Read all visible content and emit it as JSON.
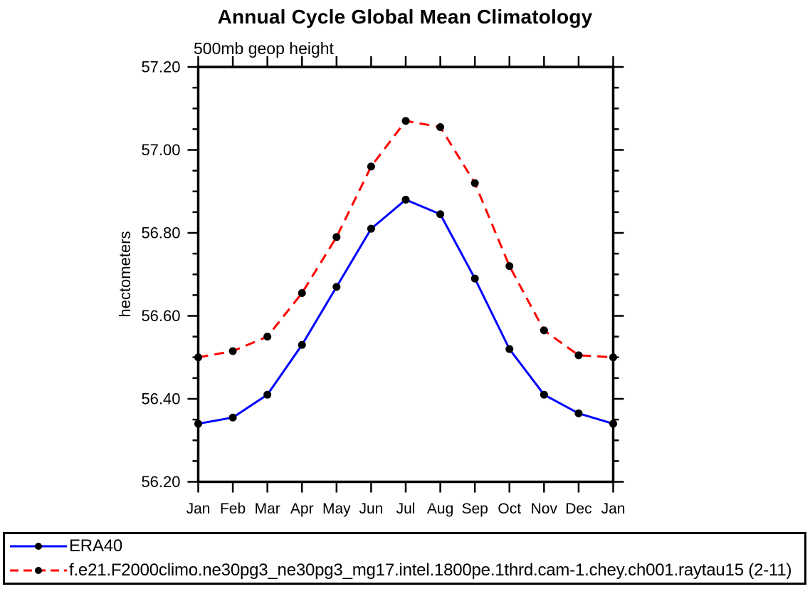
{
  "chart_data": {
    "type": "line",
    "title": "Annual Cycle Global Mean Climatology",
    "subtitle": "500mb geop height",
    "ylabel": "hectometers",
    "xlabel": "",
    "categories": [
      "Jan",
      "Feb",
      "Mar",
      "Apr",
      "May",
      "Jun",
      "Jul",
      "Aug",
      "Sep",
      "Oct",
      "Nov",
      "Dec",
      "Jan"
    ],
    "ylim": [
      56.2,
      57.2
    ],
    "y_major_ticks": [
      56.2,
      56.4,
      56.6,
      56.8,
      57.0,
      57.2
    ],
    "y_tick_labels": [
      "56.20",
      "56.40",
      "56.60",
      "56.80",
      "57.00",
      "57.20"
    ],
    "y_minor_step": 0.05,
    "grid": false,
    "legend_position": "bottom",
    "axis_color": "#000000",
    "marker_shape": "filled-circle",
    "series": [
      {
        "name": "ERA40",
        "color": "#0000ff",
        "style": "solid",
        "marker_color": "#000000",
        "values": [
          56.34,
          56.355,
          56.41,
          56.53,
          56.67,
          56.81,
          56.88,
          56.845,
          56.69,
          56.52,
          56.41,
          56.365,
          56.34
        ]
      },
      {
        "name": "f.e21.F2000climo.ne30pg3_ne30pg3_mg17.intel.1800pe.1thrd.cam-1.chey.ch001.raytau15 (2-11)",
        "color": "#ff0000",
        "style": "dashed",
        "marker_color": "#000000",
        "values": [
          56.5,
          56.515,
          56.55,
          56.655,
          56.79,
          56.96,
          57.07,
          57.055,
          56.92,
          56.72,
          56.565,
          56.505,
          56.5
        ]
      }
    ]
  }
}
